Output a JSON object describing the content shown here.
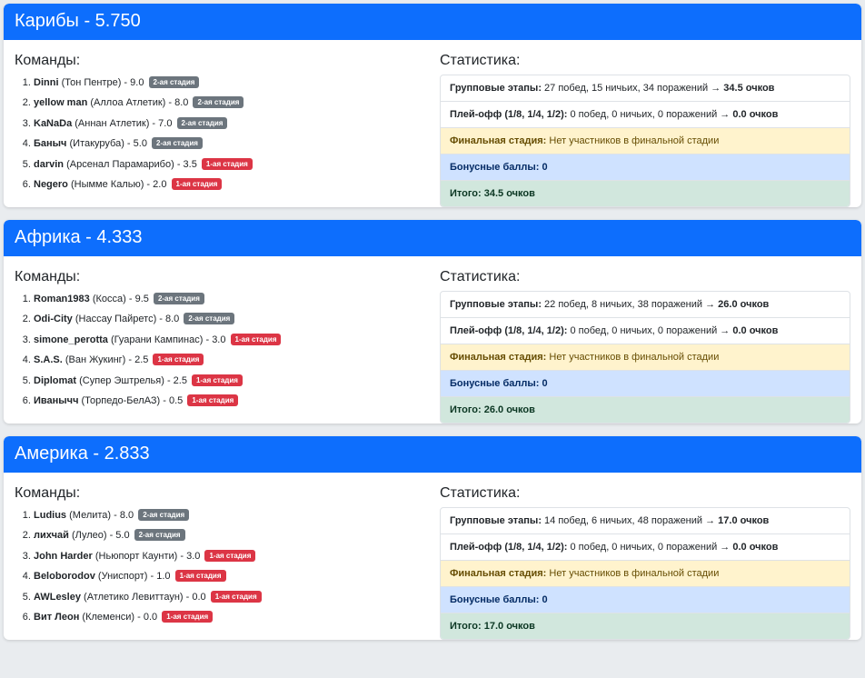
{
  "common": {
    "teams_title": "Команды:",
    "stats_title": "Статистика:",
    "group_label": "Групповые этапы:",
    "playoff_label": "Плей-офф (1/8, 1/4, 1/2):",
    "playoff_value": "0 побед, 0 ничьих, 0 поражений →",
    "playoff_points": "0.0 очков",
    "final_label": "Финальная стадия:",
    "final_value": "Нет участников в финальной стадии",
    "bonus_label": "Бонусные баллы: 0"
  },
  "colors": {
    "header": "#0d6efd",
    "badge_stage2": "#6c757d",
    "badge_stage1": "#dc3545"
  },
  "groups": [
    {
      "title": "Карибы - 5.750",
      "group_value": "27 побед, 15 ничьих, 34 поражений →",
      "group_points": "34.5 очков",
      "total": "Итого: 34.5 очков",
      "teams": [
        {
          "name": "Dinni",
          "club": "(Тон Пентре) - 9.0",
          "stage": "2-ая стадия",
          "stage_color": "gray"
        },
        {
          "name": "yellow man",
          "club": "(Аллоа Атлетик) - 8.0",
          "stage": "2-ая стадия",
          "stage_color": "gray"
        },
        {
          "name": "KaNaDa",
          "club": "(Аннан Атлетик) - 7.0",
          "stage": "2-ая стадия",
          "stage_color": "gray"
        },
        {
          "name": "Баныч",
          "club": "(Итакуруба) - 5.0",
          "stage": "2-ая стадия",
          "stage_color": "gray"
        },
        {
          "name": "darvin",
          "club": "(Арсенал Парамарибо) - 3.5",
          "stage": "1-ая стадия",
          "stage_color": "red"
        },
        {
          "name": "Negero",
          "club": "(Нымме Калью) - 2.0",
          "stage": "1-ая стадия",
          "stage_color": "red"
        }
      ]
    },
    {
      "title": "Африка - 4.333",
      "group_value": "22 побед, 8 ничьих, 38 поражений →",
      "group_points": "26.0 очков",
      "total": "Итого: 26.0 очков",
      "teams": [
        {
          "name": "Roman1983",
          "club": "(Косса) - 9.5",
          "stage": "2-ая стадия",
          "stage_color": "gray"
        },
        {
          "name": "Odi-City",
          "club": "(Нассау Пайретс) - 8.0",
          "stage": "2-ая стадия",
          "stage_color": "gray"
        },
        {
          "name": "simone_perotta",
          "club": "(Гуарани Кампинас) - 3.0",
          "stage": "1-ая стадия",
          "stage_color": "red"
        },
        {
          "name": "S.A.S.",
          "club": "(Ван Жукинг) - 2.5",
          "stage": "1-ая стадия",
          "stage_color": "red"
        },
        {
          "name": "Diplomat",
          "club": "(Супер Эштрелья) - 2.5",
          "stage": "1-ая стадия",
          "stage_color": "red"
        },
        {
          "name": "Иванычч",
          "club": "(Торпедо-БелАЗ) - 0.5",
          "stage": "1-ая стадия",
          "stage_color": "red"
        }
      ]
    },
    {
      "title": "Америка - 2.833",
      "group_value": "14 побед, 6 ничьих, 48 поражений →",
      "group_points": "17.0 очков",
      "total": "Итого: 17.0 очков",
      "teams": [
        {
          "name": "Ludius",
          "club": "(Мелита) - 8.0",
          "stage": "2-ая стадия",
          "stage_color": "gray"
        },
        {
          "name": "лихчай",
          "club": "(Лулео) - 5.0",
          "stage": "2-ая стадия",
          "stage_color": "gray"
        },
        {
          "name": "John Harder",
          "club": "(Ньюпорт Каунти) - 3.0",
          "stage": "1-ая стадия",
          "stage_color": "red"
        },
        {
          "name": "Beloborodov",
          "club": "(Униспорт) - 1.0",
          "stage": "1-ая стадия",
          "stage_color": "red"
        },
        {
          "name": "AWLesley",
          "club": "(Атлетико Левиттаун) - 0.0",
          "stage": "1-ая стадия",
          "stage_color": "red"
        },
        {
          "name": "Вит Леон",
          "club": "(Клеменси) - 0.0",
          "stage": "1-ая стадия",
          "stage_color": "red"
        }
      ]
    }
  ]
}
